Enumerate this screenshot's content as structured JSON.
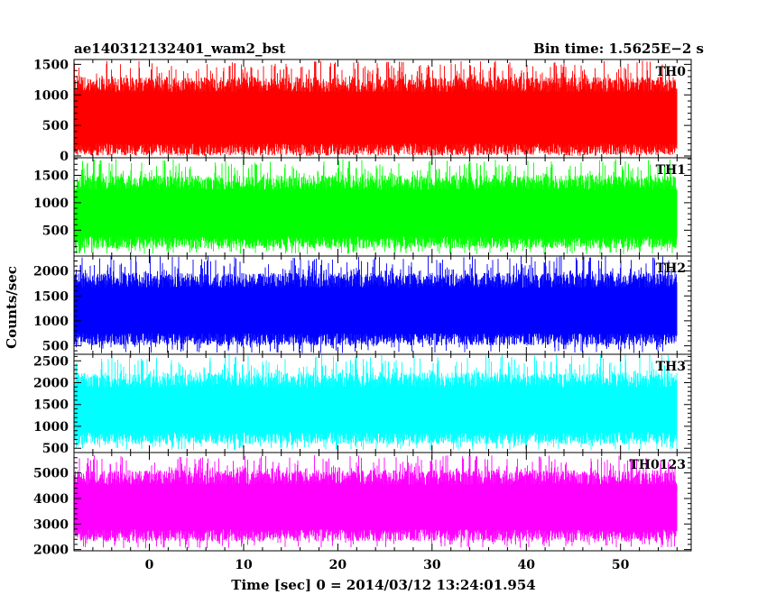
{
  "chart_data": {
    "type": "line",
    "title_left": "ae140312132401_wam2_bst",
    "title_right": "Bin time: 1.5625E−2 s",
    "xlabel": "Time [sec] 0 = 2014/03/12 13:24:01.954",
    "ylabel": "Counts/sec",
    "xlim": [
      -8,
      57.5
    ],
    "data_x_range": [
      -8,
      56
    ],
    "x_ticks": [
      0,
      10,
      20,
      30,
      40,
      50
    ],
    "x_tick_labels": [
      "0",
      "10",
      "20",
      "30",
      "40",
      "50"
    ],
    "grid": false,
    "series": [
      {
        "name": "TH0",
        "color": "#ff0000",
        "ylim": [
          -30,
          1580
        ],
        "y_ticks": [
          0,
          500,
          1000,
          1500
        ],
        "y_tick_labels": [
          "0",
          "500",
          "1000",
          "1500"
        ],
        "typical_low": 80,
        "typical_high": 1200,
        "min": 0,
        "max": 1560
      },
      {
        "name": "TH1",
        "color": "#00ff00",
        "ylim": [
          30,
          1820
        ],
        "y_ticks": [
          500,
          1000,
          1500
        ],
        "y_tick_labels": [
          "500",
          "1000",
          "1500"
        ],
        "typical_low": 250,
        "typical_high": 1400,
        "min": 60,
        "max": 1800
      },
      {
        "name": "TH2",
        "color": "#0000ff",
        "ylim": [
          330,
          2300
        ],
        "y_ticks": [
          500,
          1000,
          1500,
          2000
        ],
        "y_tick_labels": [
          "500",
          "1000",
          "1500",
          "2000"
        ],
        "typical_low": 600,
        "typical_high": 1850,
        "min": 350,
        "max": 2300
      },
      {
        "name": "TH3",
        "color": "#00ffff",
        "ylim": [
          400,
          2650
        ],
        "y_ticks": [
          500,
          1000,
          1500,
          2000,
          2500
        ],
        "y_tick_labels": [
          "500",
          "1000",
          "1500",
          "2000",
          "2500"
        ],
        "typical_low": 700,
        "typical_high": 2100,
        "min": 450,
        "max": 2650
      },
      {
        "name": "TH0123",
        "color": "#ff00ff",
        "ylim": [
          1950,
          5800
        ],
        "y_ticks": [
          2000,
          3000,
          4000,
          5000
        ],
        "y_tick_labels": [
          "2000",
          "3000",
          "4000",
          "5000"
        ],
        "typical_low": 2500,
        "typical_high": 4900,
        "min": 2050,
        "max": 5700
      }
    ]
  }
}
